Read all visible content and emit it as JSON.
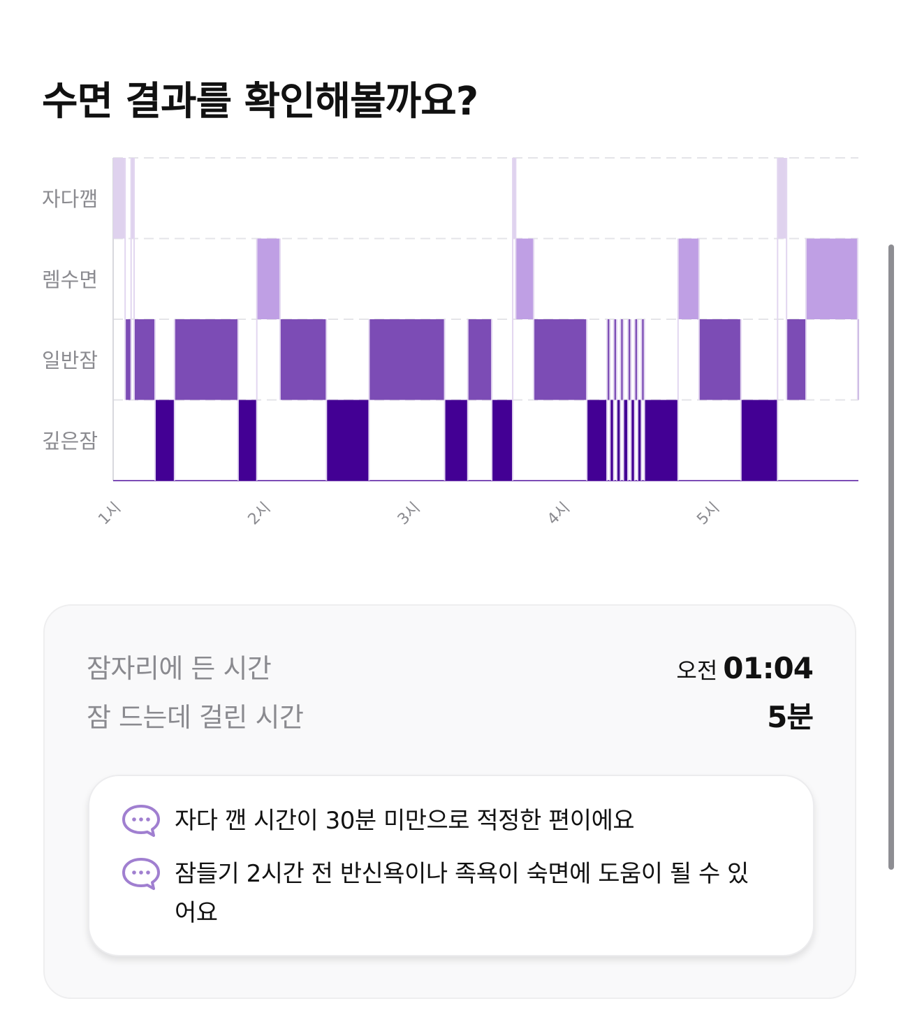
{
  "page": {
    "title": "수면 결과를 확인해볼까요?"
  },
  "chart_data": {
    "type": "hypnogram",
    "title": "",
    "xlabel": "",
    "ylabel": "",
    "x_unit": "hour",
    "x_range": [
      1.0,
      5.98
    ],
    "stages": [
      "자다깸",
      "렘수면",
      "일반잠",
      "깊은잠"
    ],
    "x_ticks": [
      "1시",
      "2시",
      "3시",
      "4시",
      "5시"
    ],
    "colors": {
      "자다깸": "#dfd2ee",
      "렘수면": "#bf9fe4",
      "일반잠": "#7c4cb5",
      "깊은잠": "#430094"
    },
    "segments": [
      {
        "stage": "자다깸",
        "start": 1.0,
        "end": 1.08
      },
      {
        "stage": "일반잠",
        "start": 1.08,
        "end": 1.12
      },
      {
        "stage": "자다깸",
        "start": 1.12,
        "end": 1.14
      },
      {
        "stage": "일반잠",
        "start": 1.14,
        "end": 1.28
      },
      {
        "stage": "깊은잠",
        "start": 1.28,
        "end": 1.41
      },
      {
        "stage": "일반잠",
        "start": 1.41,
        "end": 1.835
      },
      {
        "stage": "깊은잠",
        "start": 1.835,
        "end": 1.96
      },
      {
        "stage": "렘수면",
        "start": 1.96,
        "end": 2.115
      },
      {
        "stage": "일반잠",
        "start": 2.115,
        "end": 2.425
      },
      {
        "stage": "깊은잠",
        "start": 2.425,
        "end": 2.71
      },
      {
        "stage": "일반잠",
        "start": 2.71,
        "end": 3.215
      },
      {
        "stage": "깊은잠",
        "start": 3.215,
        "end": 3.37
      },
      {
        "stage": "일반잠",
        "start": 3.37,
        "end": 3.53
      },
      {
        "stage": "깊은잠",
        "start": 3.53,
        "end": 3.67
      },
      {
        "stage": "자다깸",
        "start": 3.67,
        "end": 3.69
      },
      {
        "stage": "렘수면",
        "start": 3.69,
        "end": 3.81
      },
      {
        "stage": "일반잠",
        "start": 3.81,
        "end": 4.165
      },
      {
        "stage": "깊은잠",
        "start": 4.165,
        "end": 4.3
      },
      {
        "stage": "일반잠",
        "start": 4.3,
        "end": 4.32
      },
      {
        "stage": "깊은잠",
        "start": 4.32,
        "end": 4.345
      },
      {
        "stage": "일반잠",
        "start": 4.345,
        "end": 4.365
      },
      {
        "stage": "깊은잠",
        "start": 4.365,
        "end": 4.39
      },
      {
        "stage": "일반잠",
        "start": 4.39,
        "end": 4.41
      },
      {
        "stage": "깊은잠",
        "start": 4.41,
        "end": 4.44
      },
      {
        "stage": "일반잠",
        "start": 4.44,
        "end": 4.46
      },
      {
        "stage": "깊은잠",
        "start": 4.46,
        "end": 4.485
      },
      {
        "stage": "일반잠",
        "start": 4.485,
        "end": 4.505
      },
      {
        "stage": "깊은잠",
        "start": 4.505,
        "end": 4.53
      },
      {
        "stage": "일반잠",
        "start": 4.53,
        "end": 4.55
      },
      {
        "stage": "깊은잠",
        "start": 4.55,
        "end": 4.775
      },
      {
        "stage": "렘수면",
        "start": 4.775,
        "end": 4.915
      },
      {
        "stage": "일반잠",
        "start": 4.915,
        "end": 5.195
      },
      {
        "stage": "깊은잠",
        "start": 5.195,
        "end": 5.44
      },
      {
        "stage": "자다깸",
        "start": 5.44,
        "end": 5.5
      },
      {
        "stage": "일반잠",
        "start": 5.5,
        "end": 5.63
      },
      {
        "stage": "렘수면",
        "start": 5.63,
        "end": 5.975
      },
      {
        "stage": "일반잠",
        "start": 5.975,
        "end": 5.98
      }
    ],
    "grid": true
  },
  "summary": {
    "bedtime_label": "잠자리에 든 시간",
    "bedtime_prefix": "오전",
    "bedtime_value": "01:04",
    "latency_label": "잠 드는데 걸린 시간",
    "latency_value": "5분"
  },
  "tips": [
    {
      "icon": "chat-bubble-icon",
      "text": "자다 깬 시간이 30분 미만으로 적정한 편이에요"
    },
    {
      "icon": "chat-bubble-icon",
      "text": "잠들기 2시간 전 반신욕이나 족욕이 숙면에 도움이 될 수 있어요"
    }
  ],
  "accent_color": "#a07fd0"
}
